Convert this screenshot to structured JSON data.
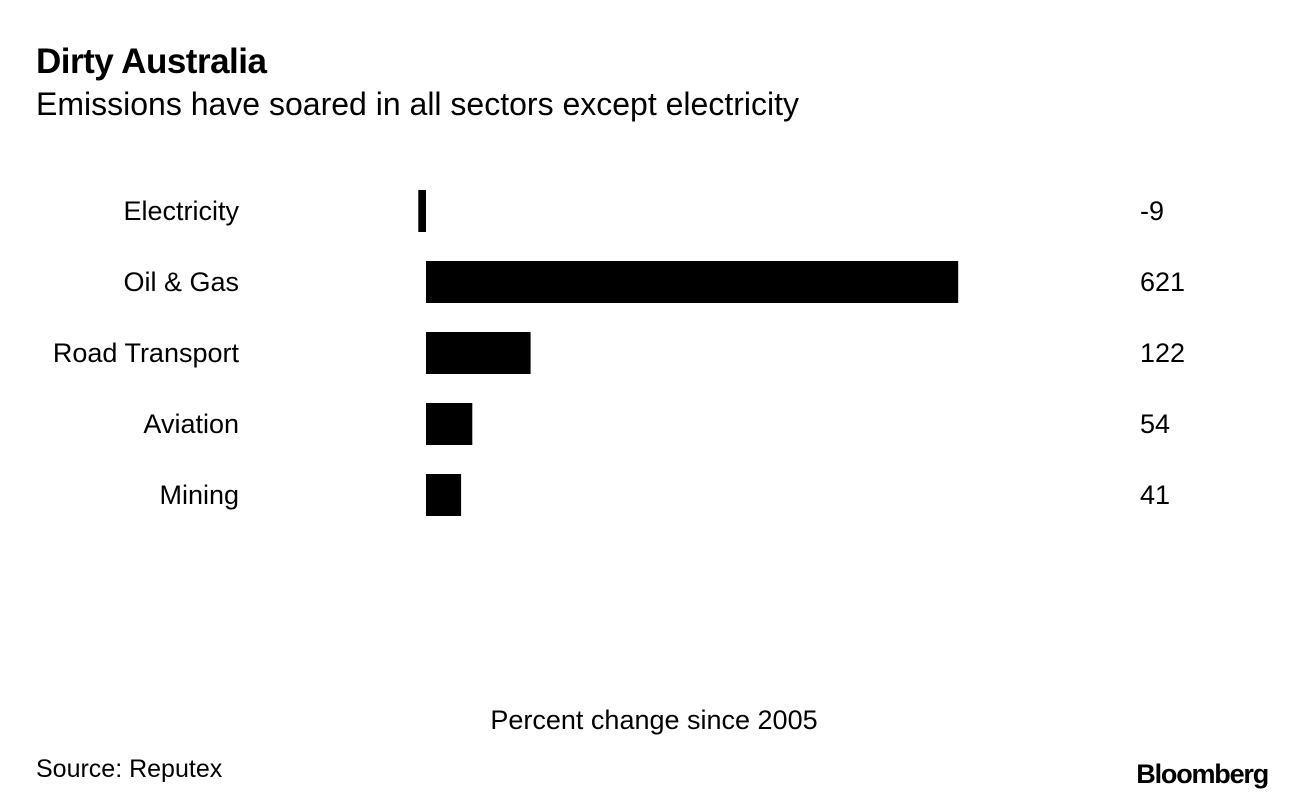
{
  "header": {
    "title": "Dirty Australia",
    "subtitle": "Emissions have soared in all sectors except electricity"
  },
  "chart_data": {
    "type": "bar",
    "orientation": "horizontal",
    "title": "Dirty Australia",
    "subtitle": "Emissions have soared in all sectors except electricity",
    "xlabel": "Percent change since 2005",
    "ylabel": "",
    "categories": [
      "Electricity",
      "Oil & Gas",
      "Road Transport",
      "Aviation",
      "Mining"
    ],
    "values": [
      -9,
      621,
      122,
      54,
      41
    ],
    "value_labels": [
      "-9",
      "621",
      "122",
      "54",
      "41"
    ],
    "xlim": [
      -9,
      621
    ],
    "grid": false,
    "legend": "none",
    "bar_color": "#000000"
  },
  "footer": {
    "source": "Source: Reputex",
    "brand": "Bloomberg"
  }
}
